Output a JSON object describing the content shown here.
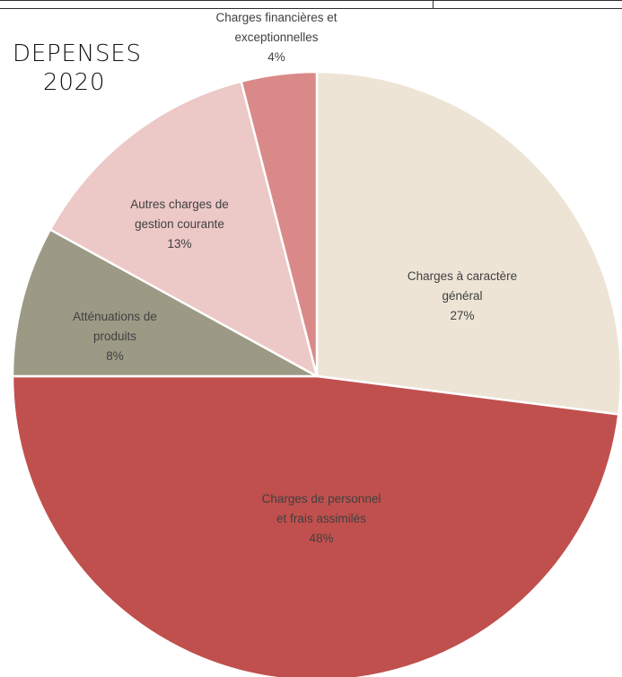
{
  "chart_data": {
    "type": "pie",
    "title": [
      "DEPENSES",
      "2020"
    ],
    "start_angle_deg": 0,
    "direction": "clockwise",
    "slices": [
      {
        "label_lines": [
          "Charges à caractère",
          "général"
        ],
        "value_label": "27%",
        "value": 27,
        "color": "#ede4d6"
      },
      {
        "label_lines": [
          "Charges de personnel",
          "et frais assimilés"
        ],
        "value_label": "48%",
        "value": 48,
        "color": "#c0504d"
      },
      {
        "label_lines": [
          "Atténuations de",
          "produits"
        ],
        "value_label": "8%",
        "value": 8,
        "color": "#9c9a85"
      },
      {
        "label_lines": [
          "Autres charges de",
          "gestion courante"
        ],
        "value_label": "13%",
        "value": 13,
        "color": "#ecc8c7"
      },
      {
        "label_lines": [
          "Charges financières et",
          "exceptionnelles"
        ],
        "value_label": "4%",
        "value": 4,
        "color": "#d98a88"
      }
    ]
  }
}
